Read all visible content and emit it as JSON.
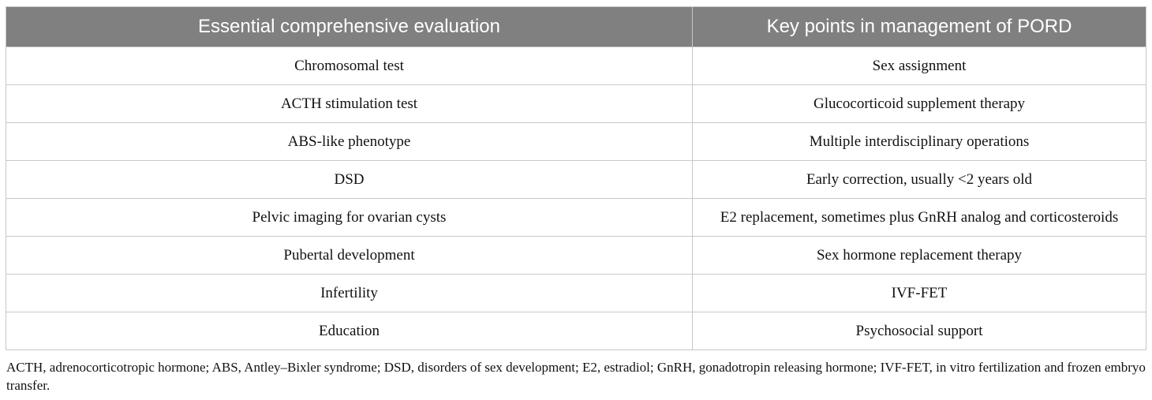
{
  "table": {
    "headers": [
      "Essential comprehensive evaluation",
      "Key points in management of PORD"
    ],
    "rows": [
      [
        "Chromosomal test",
        "Sex assignment"
      ],
      [
        "ACTH stimulation test",
        "Glucocorticoid supplement therapy"
      ],
      [
        "ABS-like phenotype",
        "Multiple interdisciplinary operations"
      ],
      [
        "DSD",
        "Early correction, usually <2 years old"
      ],
      [
        "Pelvic imaging for ovarian cysts",
        "E2 replacement, sometimes plus GnRH analog and corticosteroids"
      ],
      [
        "Pubertal development",
        "Sex hormone replacement therapy"
      ],
      [
        "Infertility",
        "IVF-FET"
      ],
      [
        "Education",
        "Psychosocial support"
      ]
    ]
  },
  "footnote": "ACTH, adrenocorticotropic hormone; ABS, Antley–Bixler syndrome; DSD, disorders of sex development; E2, estradiol; GnRH, gonadotropin releasing hormone; IVF-FET, in vitro fertilization and frozen embryo transfer.",
  "colors": {
    "header_bg": "#808080",
    "header_text": "#ffffff",
    "border": "#c8c8c8"
  }
}
